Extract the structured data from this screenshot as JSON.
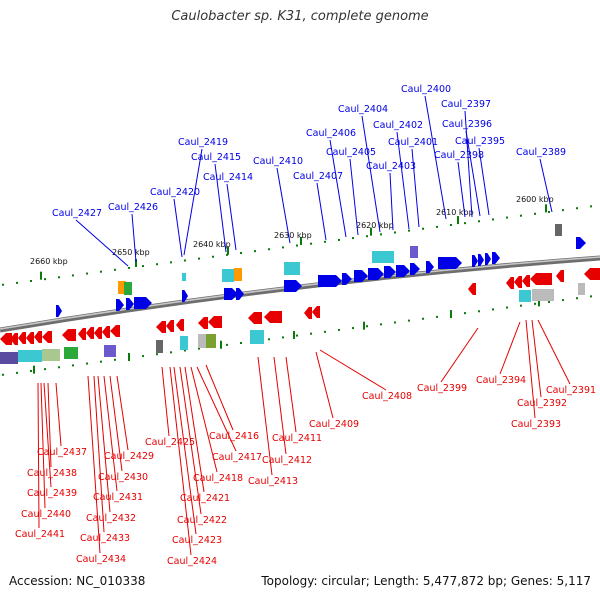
{
  "title": "Caulobacter sp. K31, complete genome",
  "footer": {
    "accession": "Accession: NC_010338",
    "topology": "Topology: circular; Length: 5,477,872 bp; Genes: 5,117"
  },
  "colors": {
    "forward": "#0000e6",
    "reverse": "#e60000",
    "backbone": "#777777",
    "tick": "#0a7a0a"
  },
  "scale": [
    "2660 kbp",
    "2650 kbp",
    "2640 kbp",
    "2630 kbp",
    "2620 kbp",
    "2610 kbp",
    "2600 kbp"
  ],
  "top_genes": [
    "Caul_2427",
    "Caul_2426",
    "Caul_2420",
    "Caul_2419",
    "Caul_2415",
    "Caul_2414",
    "Caul_2410",
    "Caul_2407",
    "Caul_2406",
    "Caul_2405",
    "Caul_2404",
    "Caul_2403",
    "Caul_2402",
    "Caul_2401",
    "Caul_2400",
    "Caul_2398",
    "Caul_2397",
    "Caul_2396",
    "Caul_2395",
    "Caul_2389"
  ],
  "bottom_genes": [
    "Caul_2437",
    "Caul_2438",
    "Caul_2439",
    "Caul_2440",
    "Caul_2441",
    "Caul_2429",
    "Caul_2430",
    "Caul_2431",
    "Caul_2432",
    "Caul_2433",
    "Caul_2434",
    "Caul_2425",
    "Caul_2416",
    "Caul_2417",
    "Caul_2418",
    "Caul_2421",
    "Caul_2422",
    "Caul_2423",
    "Caul_2424",
    "Caul_2411",
    "Caul_2412",
    "Caul_2413",
    "Caul_2409",
    "Caul_2408",
    "Caul_2399",
    "Caul_2394",
    "Caul_2391",
    "Caul_2392",
    "Caul_2393"
  ]
}
